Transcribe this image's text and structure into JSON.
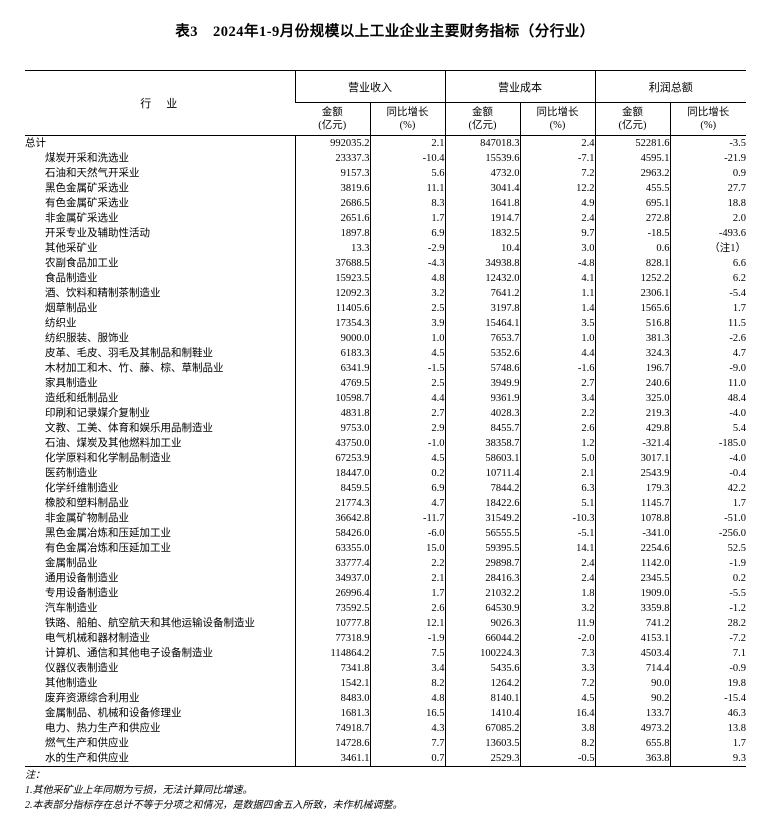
{
  "title": "表3　2024年1-9月份规模以上工业企业主要财务指标（分行业）",
  "table": {
    "industry_header": "行　业",
    "groups": [
      {
        "label": "营业收入"
      },
      {
        "label": "营业成本"
      },
      {
        "label": "利润总额"
      }
    ],
    "sub_headers": {
      "amount_line1": "金额",
      "amount_line2": "(亿元)",
      "growth_line1": "同比增长",
      "growth_line2": "(%)"
    },
    "rows": [
      {
        "industry": "总计",
        "indent": 0,
        "values": [
          "992035.2",
          "2.1",
          "847018.3",
          "2.4",
          "52281.6",
          "-3.5"
        ]
      },
      {
        "industry": "煤炭开采和洗选业",
        "indent": 1,
        "values": [
          "23337.3",
          "-10.4",
          "15539.6",
          "-7.1",
          "4595.1",
          "-21.9"
        ]
      },
      {
        "industry": "石油和天然气开采业",
        "indent": 1,
        "values": [
          "9157.3",
          "5.6",
          "4732.0",
          "7.2",
          "2963.2",
          "0.9"
        ]
      },
      {
        "industry": "黑色金属矿采选业",
        "indent": 1,
        "values": [
          "3819.6",
          "11.1",
          "3041.4",
          "12.2",
          "455.5",
          "27.7"
        ]
      },
      {
        "industry": "有色金属矿采选业",
        "indent": 1,
        "values": [
          "2686.5",
          "8.3",
          "1641.8",
          "4.9",
          "695.1",
          "18.8"
        ]
      },
      {
        "industry": "非金属矿采选业",
        "indent": 1,
        "values": [
          "2651.6",
          "1.7",
          "1914.7",
          "2.4",
          "272.8",
          "2.0"
        ]
      },
      {
        "industry": "开采专业及辅助性活动",
        "indent": 1,
        "values": [
          "1897.8",
          "6.9",
          "1832.5",
          "9.7",
          "-18.5",
          "-493.6"
        ]
      },
      {
        "industry": "其他采矿业",
        "indent": 1,
        "values": [
          "13.3",
          "-2.9",
          "10.4",
          "3.0",
          "0.6",
          "（注1）"
        ]
      },
      {
        "industry": "农副食品加工业",
        "indent": 1,
        "values": [
          "37688.5",
          "-4.3",
          "34938.8",
          "-4.8",
          "828.1",
          "6.6"
        ]
      },
      {
        "industry": "食品制造业",
        "indent": 1,
        "values": [
          "15923.5",
          "4.8",
          "12432.0",
          "4.1",
          "1252.2",
          "6.2"
        ]
      },
      {
        "industry": "酒、饮料和精制茶制造业",
        "indent": 1,
        "values": [
          "12092.3",
          "3.2",
          "7641.2",
          "1.1",
          "2306.1",
          "-5.4"
        ]
      },
      {
        "industry": "烟草制品业",
        "indent": 1,
        "values": [
          "11405.6",
          "2.5",
          "3197.8",
          "1.4",
          "1565.6",
          "1.7"
        ]
      },
      {
        "industry": "纺织业",
        "indent": 1,
        "values": [
          "17354.3",
          "3.9",
          "15464.1",
          "3.5",
          "516.8",
          "11.5"
        ]
      },
      {
        "industry": "纺织服装、服饰业",
        "indent": 1,
        "values": [
          "9000.0",
          "1.0",
          "7653.7",
          "1.0",
          "381.3",
          "-2.6"
        ]
      },
      {
        "industry": "皮革、毛皮、羽毛及其制品和制鞋业",
        "indent": 1,
        "values": [
          "6183.3",
          "4.5",
          "5352.6",
          "4.4",
          "324.3",
          "4.7"
        ]
      },
      {
        "industry": "木材加工和木、竹、藤、棕、草制品业",
        "indent": 1,
        "values": [
          "6341.9",
          "-1.5",
          "5748.6",
          "-1.6",
          "196.7",
          "-9.0"
        ]
      },
      {
        "industry": "家具制造业",
        "indent": 1,
        "values": [
          "4769.5",
          "2.5",
          "3949.9",
          "2.7",
          "240.6",
          "11.0"
        ]
      },
      {
        "industry": "造纸和纸制品业",
        "indent": 1,
        "values": [
          "10598.7",
          "4.4",
          "9361.9",
          "3.4",
          "325.0",
          "48.4"
        ]
      },
      {
        "industry": "印刷和记录媒介复制业",
        "indent": 1,
        "values": [
          "4831.8",
          "2.7",
          "4028.3",
          "2.2",
          "219.3",
          "-4.0"
        ]
      },
      {
        "industry": "文教、工美、体育和娱乐用品制造业",
        "indent": 1,
        "values": [
          "9753.0",
          "2.9",
          "8455.7",
          "2.6",
          "429.8",
          "5.4"
        ]
      },
      {
        "industry": "石油、煤炭及其他燃料加工业",
        "indent": 1,
        "values": [
          "43750.0",
          "-1.0",
          "38358.7",
          "1.2",
          "-321.4",
          "-185.0"
        ]
      },
      {
        "industry": "化学原料和化学制品制造业",
        "indent": 1,
        "values": [
          "67253.9",
          "4.5",
          "58603.1",
          "5.0",
          "3017.1",
          "-4.0"
        ]
      },
      {
        "industry": "医药制造业",
        "indent": 1,
        "values": [
          "18447.0",
          "0.2",
          "10711.4",
          "2.1",
          "2543.9",
          "-0.4"
        ]
      },
      {
        "industry": "化学纤维制造业",
        "indent": 1,
        "values": [
          "8459.5",
          "6.9",
          "7844.2",
          "6.3",
          "179.3",
          "42.2"
        ]
      },
      {
        "industry": "橡胶和塑料制品业",
        "indent": 1,
        "values": [
          "21774.3",
          "4.7",
          "18422.6",
          "5.1",
          "1145.7",
          "1.7"
        ]
      },
      {
        "industry": "非金属矿物制品业",
        "indent": 1,
        "values": [
          "36642.8",
          "-11.7",
          "31549.2",
          "-10.3",
          "1078.8",
          "-51.0"
        ]
      },
      {
        "industry": "黑色金属冶炼和压延加工业",
        "indent": 1,
        "values": [
          "58426.0",
          "-6.0",
          "56555.5",
          "-5.1",
          "-341.0",
          "-256.0"
        ]
      },
      {
        "industry": "有色金属冶炼和压延加工业",
        "indent": 1,
        "values": [
          "63355.0",
          "15.0",
          "59395.5",
          "14.1",
          "2254.6",
          "52.5"
        ]
      },
      {
        "industry": "金属制品业",
        "indent": 1,
        "values": [
          "33777.4",
          "2.2",
          "29898.7",
          "2.4",
          "1142.0",
          "-1.9"
        ]
      },
      {
        "industry": "通用设备制造业",
        "indent": 1,
        "values": [
          "34937.0",
          "2.1",
          "28416.3",
          "2.4",
          "2345.5",
          "0.2"
        ]
      },
      {
        "industry": "专用设备制造业",
        "indent": 1,
        "values": [
          "26996.4",
          "1.7",
          "21032.2",
          "1.8",
          "1909.0",
          "-5.5"
        ]
      },
      {
        "industry": "汽车制造业",
        "indent": 1,
        "values": [
          "73592.5",
          "2.6",
          "64530.9",
          "3.2",
          "3359.8",
          "-1.2"
        ]
      },
      {
        "industry": "铁路、船舶、航空航天和其他运输设备制造业",
        "indent": 1,
        "values": [
          "10777.8",
          "12.1",
          "9026.3",
          "11.9",
          "741.2",
          "28.2"
        ]
      },
      {
        "industry": "电气机械和器材制造业",
        "indent": 1,
        "values": [
          "77318.9",
          "-1.9",
          "66044.2",
          "-2.0",
          "4153.1",
          "-7.2"
        ]
      },
      {
        "industry": "计算机、通信和其他电子设备制造业",
        "indent": 1,
        "values": [
          "114864.2",
          "7.5",
          "100224.3",
          "7.3",
          "4503.4",
          "7.1"
        ]
      },
      {
        "industry": "仪器仪表制造业",
        "indent": 1,
        "values": [
          "7341.8",
          "3.4",
          "5435.6",
          "3.3",
          "714.4",
          "-0.9"
        ]
      },
      {
        "industry": "其他制造业",
        "indent": 1,
        "values": [
          "1542.1",
          "8.2",
          "1264.2",
          "7.2",
          "90.0",
          "19.8"
        ]
      },
      {
        "industry": "废弃资源综合利用业",
        "indent": 1,
        "values": [
          "8483.0",
          "4.8",
          "8140.1",
          "4.5",
          "90.2",
          "-15.4"
        ]
      },
      {
        "industry": "金属制品、机械和设备修理业",
        "indent": 1,
        "values": [
          "1681.3",
          "16.5",
          "1410.4",
          "16.4",
          "133.7",
          "46.3"
        ]
      },
      {
        "industry": "电力、热力生产和供应业",
        "indent": 1,
        "values": [
          "74918.7",
          "4.3",
          "67085.2",
          "3.8",
          "4973.2",
          "13.8"
        ]
      },
      {
        "industry": "燃气生产和供应业",
        "indent": 1,
        "values": [
          "14728.6",
          "7.7",
          "13603.5",
          "8.2",
          "655.8",
          "1.7"
        ]
      },
      {
        "industry": "水的生产和供应业",
        "indent": 1,
        "values": [
          "3461.1",
          "0.7",
          "2529.3",
          "-0.5",
          "363.8",
          "9.3"
        ]
      }
    ]
  },
  "footnotes": {
    "label": "注：",
    "items": [
      "1.其他采矿业上年同期为亏损，无法计算同比增速。",
      "2.本表部分指标存在总计不等于分项之和情况，是数据四舍五入所致，未作机械调整。"
    ]
  }
}
